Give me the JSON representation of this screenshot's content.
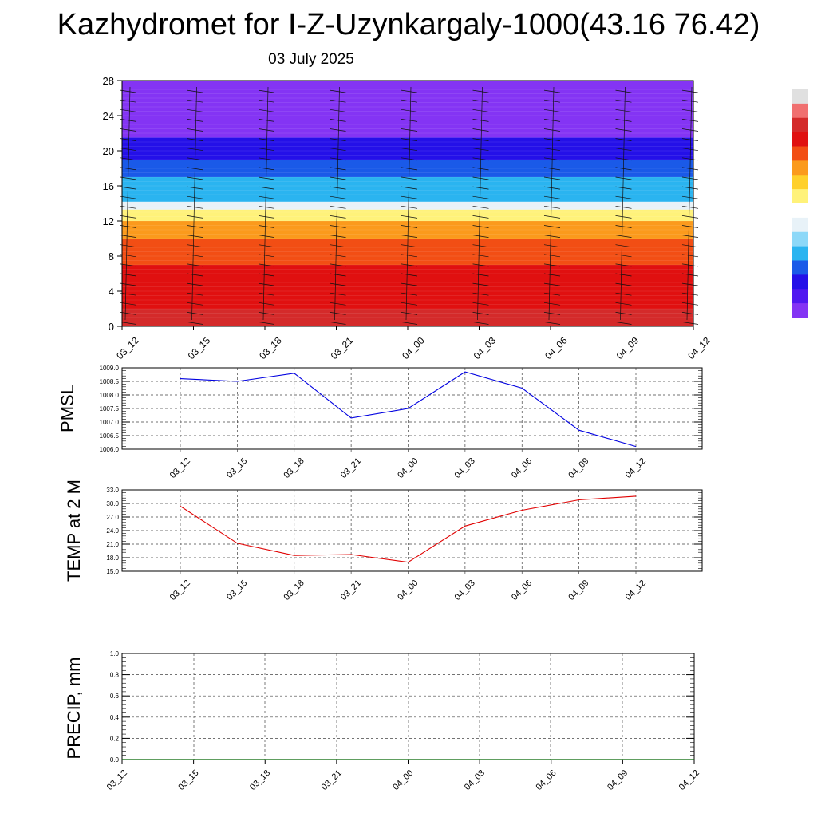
{
  "title": "Kazhydromet for I-Z-Uzynkargaly-1000(43.16 76.42)",
  "date": "03 July 2025",
  "chart_data": [
    {
      "type": "heatmap",
      "xlabel": "",
      "ylabel": "",
      "x": [
        "03_12",
        "03_15",
        "03_18",
        "03_21",
        "04_00",
        "04_03",
        "04_06",
        "04_09",
        "04_12"
      ],
      "y_ticks": [
        0,
        4,
        8,
        12,
        16,
        20,
        24,
        28
      ],
      "ylim": [
        0,
        28
      ],
      "color_bands": [
        {
          "from": 0,
          "to": 2,
          "color": "#d42a2a"
        },
        {
          "from": 2,
          "to": 7,
          "color": "#e01010"
        },
        {
          "from": 7,
          "to": 10,
          "color": "#f24e14"
        },
        {
          "from": 10,
          "to": 12,
          "color": "#fb9a1c"
        },
        {
          "from": 12,
          "to": 13.3,
          "color": "#fff27a"
        },
        {
          "from": 13.3,
          "to": 14.2,
          "color": "#e8f2f8"
        },
        {
          "from": 14.2,
          "to": 17,
          "color": "#2ab4f0"
        },
        {
          "from": 17,
          "to": 19,
          "color": "#1a5ae8"
        },
        {
          "from": 19,
          "to": 21.5,
          "color": "#2410e8"
        },
        {
          "from": 21.5,
          "to": 28,
          "color": "#8434f4"
        }
      ],
      "colorbar": [
        "#e0e0e0",
        "#f07070",
        "#d42a2a",
        "#e01010",
        "#f24e14",
        "#fb9a1c",
        "#ffd02a",
        "#fff27a",
        "#ffffff",
        "#e8f2f8",
        "#8cd8f8",
        "#2ab4f0",
        "#1a5ae8",
        "#2410e8",
        "#5018f0",
        "#8434f4"
      ],
      "wind_barbs": true
    },
    {
      "type": "line",
      "ylabel": "PMSL",
      "x": [
        "03_12",
        "03_15",
        "03_18",
        "03_21",
        "04_00",
        "04_03",
        "04_06",
        "04_09",
        "04_12"
      ],
      "y_ticks": [
        "1006.0",
        "1006.5",
        "1007.0",
        "1007.5",
        "1008.0",
        "1008.5",
        "1009.0"
      ],
      "ylim": [
        1006.0,
        1009.0
      ],
      "series": [
        {
          "values": [
            1008.6,
            1008.5,
            1008.8,
            1007.15,
            1007.5,
            1008.85,
            1008.25,
            1006.7,
            1006.1
          ],
          "color": "#0000e0"
        }
      ],
      "grid": true
    },
    {
      "type": "line",
      "ylabel": "TEMP at 2 M",
      "x": [
        "03_12",
        "03_15",
        "03_18",
        "03_21",
        "04_00",
        "04_03",
        "04_06",
        "04_09",
        "04_12"
      ],
      "y_ticks": [
        "15.0",
        "18.0",
        "21.0",
        "24.0",
        "27.0",
        "30.0",
        "33.0"
      ],
      "ylim": [
        15.0,
        33.0
      ],
      "series": [
        {
          "values": [
            29.4,
            21.2,
            18.5,
            18.7,
            17.0,
            25.0,
            28.5,
            30.8,
            31.6
          ],
          "color": "#e00000"
        }
      ],
      "grid": true
    },
    {
      "type": "line",
      "ylabel": "PRECIP, mm",
      "x": [
        "03_12",
        "03_15",
        "03_18",
        "03_21",
        "04_00",
        "04_03",
        "04_06",
        "04_09",
        "04_12"
      ],
      "y_ticks": [
        "0.0",
        "0.2",
        "0.4",
        "0.6",
        "0.8",
        "1.0"
      ],
      "ylim": [
        0.0,
        1.0
      ],
      "series": [
        {
          "values": [
            0,
            0,
            0,
            0,
            0,
            0,
            0,
            0,
            0
          ],
          "color": "#006400"
        }
      ],
      "grid": true
    }
  ]
}
